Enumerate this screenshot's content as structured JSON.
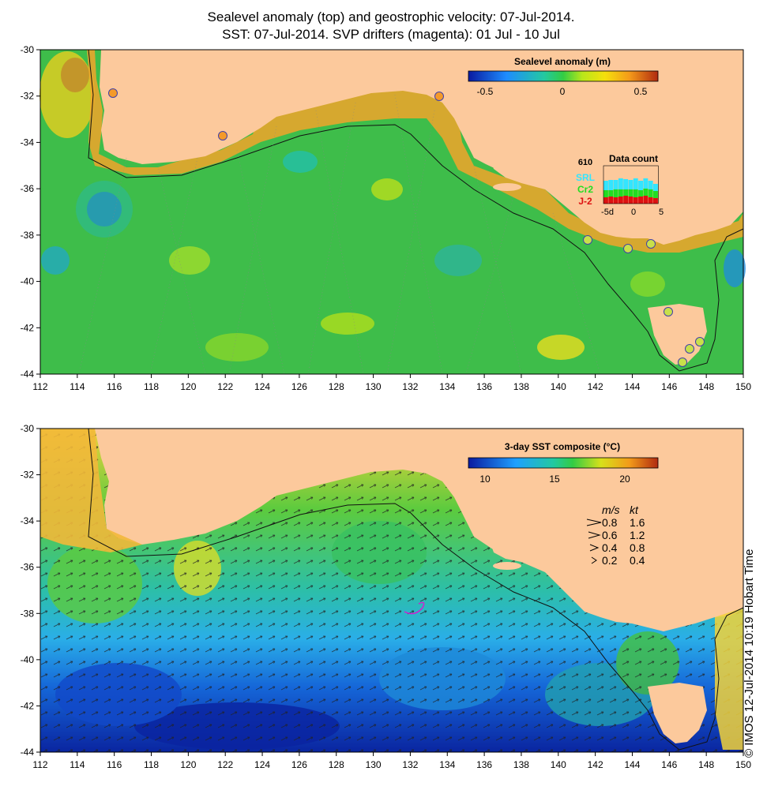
{
  "title_line1": "Sealevel anomaly (top) and geostrophic velocity: 07-Jul-2014.",
  "title_line2": "SST: 07-Jul-2014. SVP drifters (magenta): 01 Jul - 10 Jul",
  "x_ticks": [
    "112",
    "114",
    "116",
    "118",
    "120",
    "122",
    "124",
    "126",
    "128",
    "130",
    "132",
    "134",
    "136",
    "138",
    "140",
    "142",
    "144",
    "146",
    "148",
    "150"
  ],
  "y_ticks": [
    "-30",
    "-32",
    "-34",
    "-36",
    "-38",
    "-40",
    "-42",
    "-44"
  ],
  "top_panel": {
    "legend_title": "Sealevel anomaly (m)",
    "legend_ticks": [
      "-0.5",
      "0",
      "0.5"
    ],
    "data_count": {
      "title": "Data count",
      "max": "610",
      "satellites": [
        "SRL",
        "Cr2",
        "J-2"
      ],
      "axis": [
        "-5d",
        "0",
        "5"
      ],
      "colors": {
        "SRL": "#33e5ff",
        "Cr2": "#22dd22",
        "J-2": "#dd1111"
      }
    }
  },
  "bottom_panel": {
    "legend_title": "3-day SST composite (°C)",
    "legend_ticks": [
      "10",
      "15",
      "20"
    ],
    "speed_legend": {
      "headers": [
        "m/s",
        "kt"
      ],
      "rows": [
        [
          "0.8",
          "1.6"
        ],
        [
          "0.6",
          "1.2"
        ],
        [
          "0.4",
          "0.8"
        ],
        [
          "0.2",
          "0.4"
        ]
      ]
    }
  },
  "credit": "© IMOS 12-Jul-2014 10:19 Hobart Time",
  "colors": {
    "land": "#fcc99c",
    "ocean_ssh": "#2fb84a",
    "ocean_sst_warm": "#f2d23a",
    "ocean_sst_cold": "#0d2fa8"
  }
}
